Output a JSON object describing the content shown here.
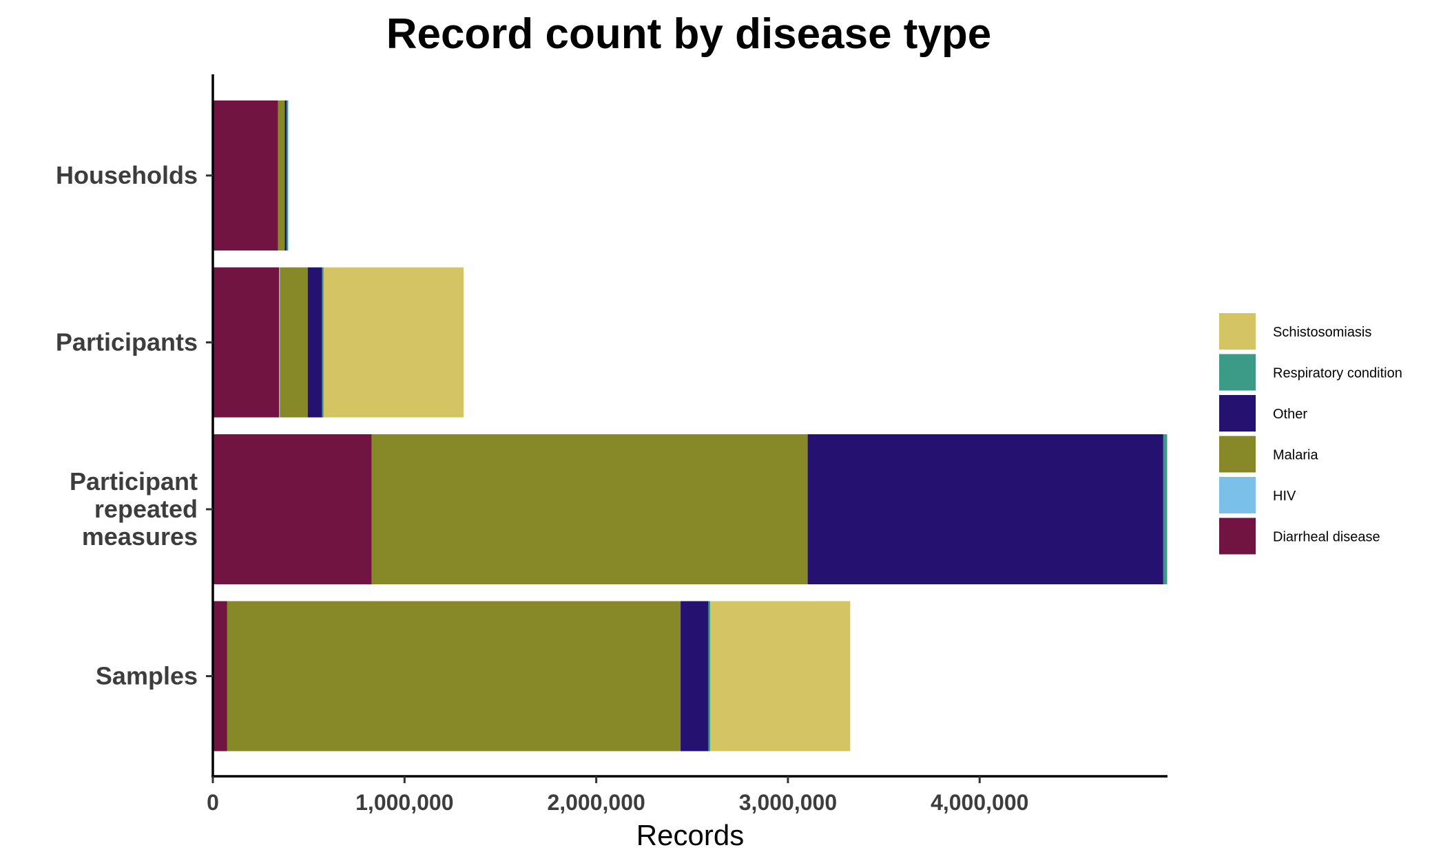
{
  "chart_data": {
    "type": "bar",
    "orientation": "horizontal",
    "stacked": true,
    "title": "Record count by disease type",
    "xlabel": "Records",
    "ylabel": "",
    "categories": [
      "Households",
      "Participants",
      "Participant repeated measures",
      "Samples"
    ],
    "category_lines": [
      [
        "Households"
      ],
      [
        "Participants"
      ],
      [
        "Participant",
        "repeated",
        "measures"
      ],
      [
        "Samples"
      ]
    ],
    "xlim": [
      0,
      4980000
    ],
    "xticks": [
      0,
      1000000,
      2000000,
      3000000,
      4000000
    ],
    "xtick_labels": [
      "0",
      "1,000,000",
      "2,000,000",
      "3,000,000",
      "4,000,000"
    ],
    "grid": false,
    "legend_position": "right",
    "series": [
      {
        "name": "Diarrheal disease",
        "color": "#721442",
        "values": [
          340000,
          345000,
          828000,
          75000
        ]
      },
      {
        "name": "HIV",
        "color": "#7ac0e8",
        "values": [
          0,
          5000,
          0,
          0
        ]
      },
      {
        "name": "Malaria",
        "color": "#878827",
        "values": [
          35000,
          145000,
          2275000,
          2365000
        ]
      },
      {
        "name": "Other",
        "color": "#241170",
        "values": [
          10000,
          75000,
          1855000,
          145000
        ]
      },
      {
        "name": "Respiratory condition",
        "color": "#3b9b86",
        "values": [
          8000,
          8000,
          20000,
          10000
        ]
      },
      {
        "name": "Schistosomiasis",
        "color": "#d5c464",
        "values": [
          0,
          730000,
          0,
          730000
        ]
      }
    ]
  }
}
